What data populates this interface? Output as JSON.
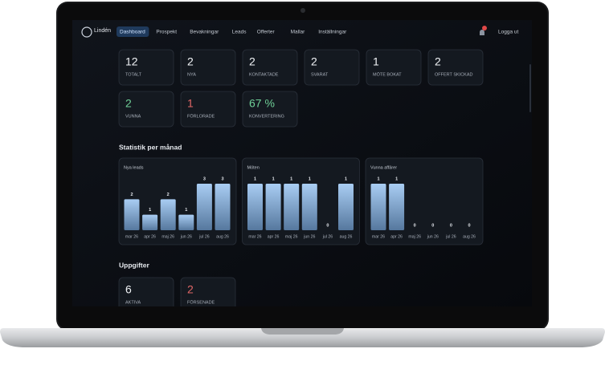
{
  "brand": "Lindén",
  "nav": [
    "Dashboard",
    "Prospekt",
    "Bevakningar",
    "Leads",
    "Offerter",
    "Mallar",
    "Inställningar"
  ],
  "logout": "Logga ut",
  "stats": [
    {
      "value": 12,
      "label": "TOTALT"
    },
    {
      "value": 2,
      "label": "NYA"
    },
    {
      "value": 2,
      "label": "KONTAKTADE"
    },
    {
      "value": 2,
      "label": "SVARAT"
    },
    {
      "value": 1,
      "label": "MÖTE BOKAT"
    },
    {
      "value": 2,
      "label": "OFFERT SKICKAD"
    },
    {
      "value": 2,
      "label": "VUNNA",
      "color": "#6fcf97"
    },
    {
      "value": 1,
      "label": "FÖRLORADE",
      "color": "#e06666"
    },
    {
      "value": "67 %",
      "label": "KONVERTERING",
      "color": "#6fcf97"
    }
  ],
  "section_stats": "Statistik per månad",
  "charts": [
    {
      "type": "bar",
      "title": "Nya leads",
      "categories": [
        "mar 26",
        "apr 26",
        "maj 26",
        "jun 26",
        "jul 26",
        "aug 26"
      ],
      "values": [
        2,
        1,
        2,
        1,
        3,
        3
      ]
    },
    {
      "type": "bar",
      "title": "Möten",
      "categories": [
        "mar 26",
        "apr 26",
        "maj 26",
        "jun 26",
        "jul 26",
        "aug 26"
      ],
      "values": [
        1,
        1,
        1,
        1,
        0,
        1
      ]
    },
    {
      "type": "bar",
      "title": "Vunna affärer",
      "categories": [
        "mar 26",
        "apr 26",
        "maj 26",
        "jun 26",
        "jul 26",
        "aug 26"
      ],
      "values": [
        1,
        1,
        0,
        0,
        0,
        0
      ]
    }
  ],
  "section_tasks": "Uppgifter",
  "tasks": [
    {
      "value": 6,
      "label": "AKTIVA"
    },
    {
      "value": 2,
      "label": "FÖRSENADE",
      "color": "#e06666"
    }
  ]
}
